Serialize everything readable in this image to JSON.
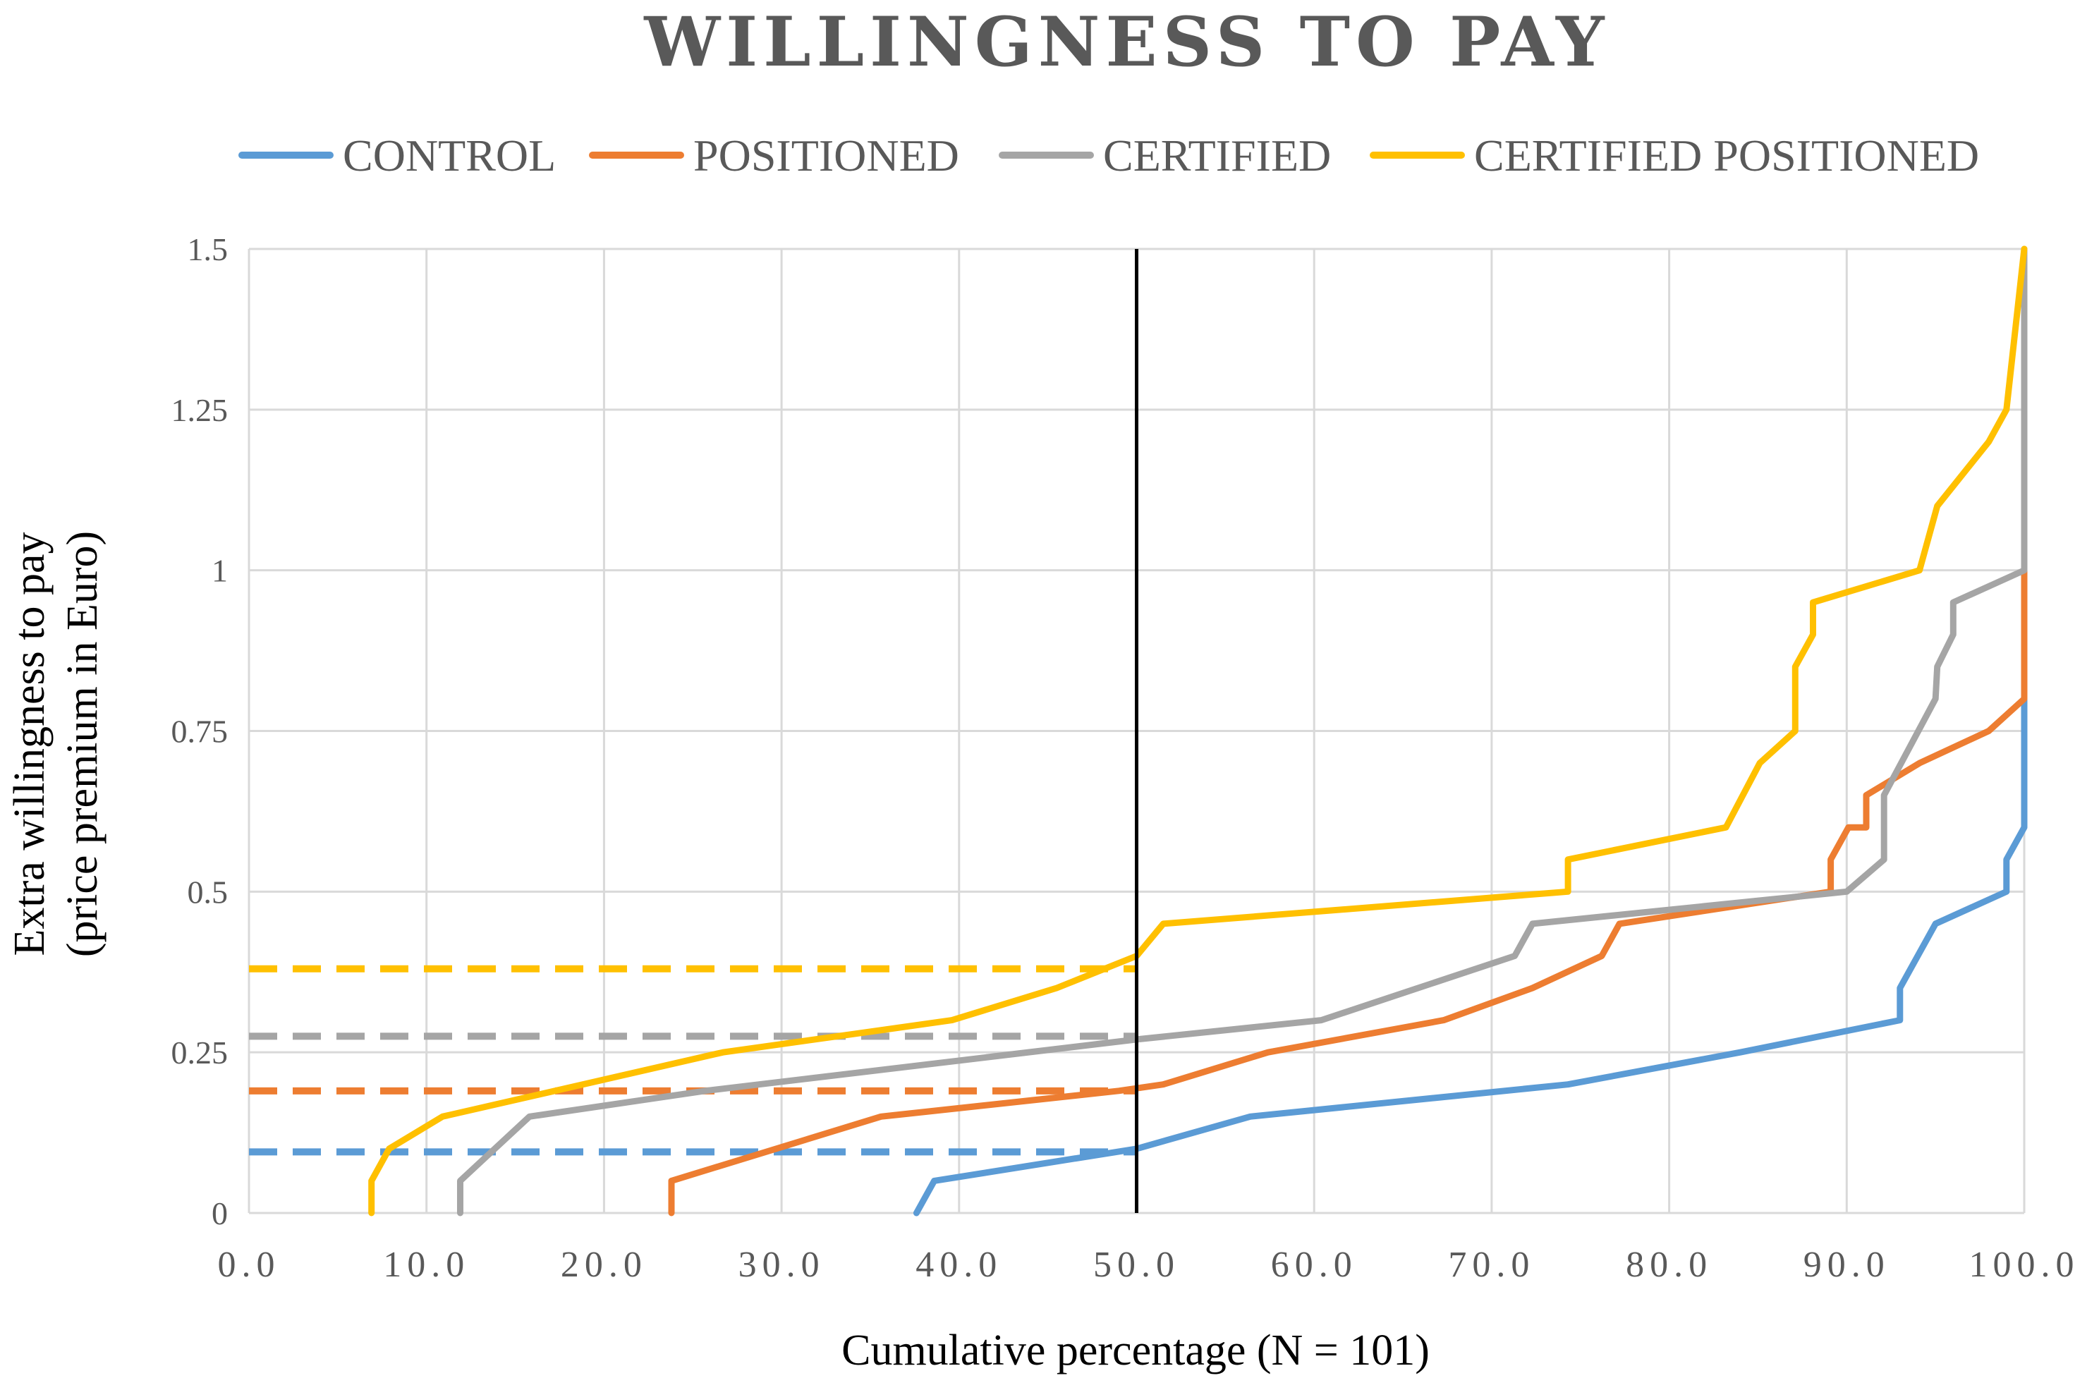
{
  "chart_data": {
    "type": "line",
    "title": "WILLINGNESS TO PAY",
    "xlabel": "Cumulative percentage (N = 101)",
    "ylabel_line1": "Extra willingness to pay",
    "ylabel_line2": "(price premium in Euro)",
    "xlim": [
      0,
      100
    ],
    "ylim": [
      0,
      1.5
    ],
    "xticks": [
      "0.0",
      "10.0",
      "20.0",
      "30.0",
      "40.0",
      "50.0",
      "60.0",
      "70.0",
      "80.0",
      "90.0",
      "100.0"
    ],
    "yticks": [
      "0",
      "0.25",
      "0.5",
      "0.75",
      "1",
      "1.25",
      "1.5"
    ],
    "ytick_values": [
      0,
      0.25,
      0.5,
      0.75,
      1,
      1.25,
      1.5
    ],
    "xtick_values": [
      0,
      10,
      20,
      30,
      40,
      50,
      60,
      70,
      80,
      90,
      100
    ],
    "grid": true,
    "legend_position": "top",
    "reference_line_x": 50,
    "series": [
      {
        "name": "CONTROL",
        "color": "#5B9BD5",
        "median": 0.095,
        "x": [
          37.6,
          38.6,
          50,
          56.4,
          74.3,
          84,
          93,
          93,
          95,
          99,
          99,
          100,
          100
        ],
        "y": [
          0,
          0.05,
          0.1,
          0.15,
          0.2,
          0.25,
          0.3,
          0.35,
          0.45,
          0.5,
          0.55,
          0.6,
          0.8
        ]
      },
      {
        "name": "POSITIONED",
        "color": "#ED7D31",
        "median": 0.19,
        "x": [
          23.8,
          23.8,
          35.6,
          49,
          51.5,
          57.4,
          67.3,
          72.3,
          76.2,
          77.2,
          89.1,
          89.1,
          90.1,
          91.1,
          91.1,
          94.1,
          98,
          100,
          100
        ],
        "y": [
          0,
          0.05,
          0.15,
          0.19,
          0.2,
          0.25,
          0.3,
          0.35,
          0.4,
          0.45,
          0.5,
          0.55,
          0.6,
          0.6,
          0.65,
          0.7,
          0.75,
          0.8,
          1.0
        ]
      },
      {
        "name": "CERTIFIED",
        "color": "#A5A5A5",
        "median": 0.275,
        "x": [
          11.9,
          11.9,
          15.8,
          25.7,
          50,
          60.4,
          71.3,
          72.3,
          90,
          92.1,
          92.1,
          95,
          95.1,
          96,
          96,
          100,
          100
        ],
        "y": [
          0,
          0.05,
          0.15,
          0.19,
          0.27,
          0.3,
          0.4,
          0.45,
          0.5,
          0.55,
          0.65,
          0.8,
          0.85,
          0.9,
          0.95,
          1.0,
          1.5
        ]
      },
      {
        "name": "CERTIFIED POSITIONED",
        "color": "#FFC000",
        "median": 0.38,
        "x": [
          6.9,
          6.9,
          7.9,
          10.9,
          26.7,
          39.6,
          45.5,
          50,
          51.5,
          74.3,
          74.3,
          83.2,
          85.1,
          87.1,
          87.1,
          88.1,
          88.1,
          94.1,
          95.1,
          98,
          99,
          100
        ],
        "y": [
          0,
          0.05,
          0.1,
          0.15,
          0.25,
          0.3,
          0.35,
          0.4,
          0.45,
          0.5,
          0.55,
          0.6,
          0.7,
          0.75,
          0.85,
          0.9,
          0.95,
          1.0,
          1.1,
          1.2,
          1.25,
          1.5
        ]
      }
    ]
  }
}
